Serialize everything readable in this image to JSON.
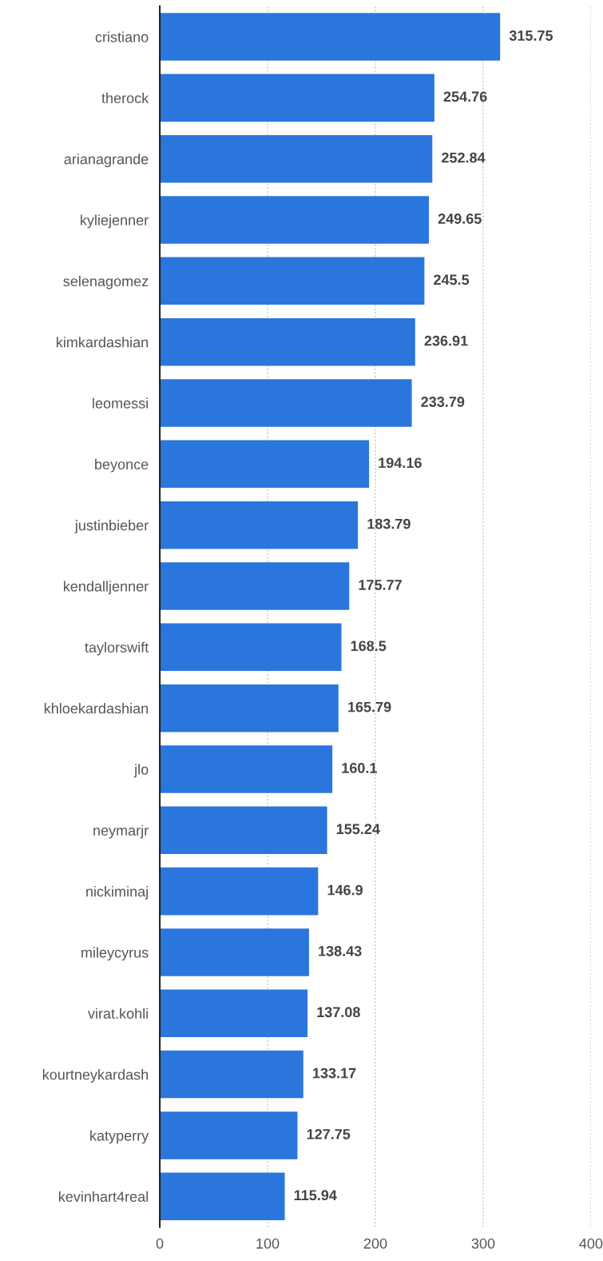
{
  "chart_data": {
    "type": "bar",
    "orientation": "horizontal",
    "categories": [
      "cristiano",
      "therock",
      "arianagrande",
      "kyliejenner",
      "selenagomez",
      "kimkardashian",
      "leomessi",
      "beyonce",
      "justinbieber",
      "kendalljenner",
      "taylorswift",
      "khloekardashian",
      "jlo",
      "neymarjr",
      "nickiminaj",
      "mileycyrus",
      "virat.kohli",
      "kourtneykardash",
      "katyperry",
      "kevinhart4real"
    ],
    "values": [
      315.75,
      254.76,
      252.84,
      249.65,
      245.5,
      236.91,
      233.79,
      194.16,
      183.79,
      175.77,
      168.5,
      165.79,
      160.1,
      155.24,
      146.9,
      138.43,
      137.08,
      133.17,
      127.75,
      115.94
    ],
    "color": "#2a76dd",
    "xlim": [
      0,
      400
    ],
    "xticks": [
      0,
      100,
      200,
      300,
      400
    ],
    "grid": "x",
    "data_labels": true,
    "legend": false
  }
}
